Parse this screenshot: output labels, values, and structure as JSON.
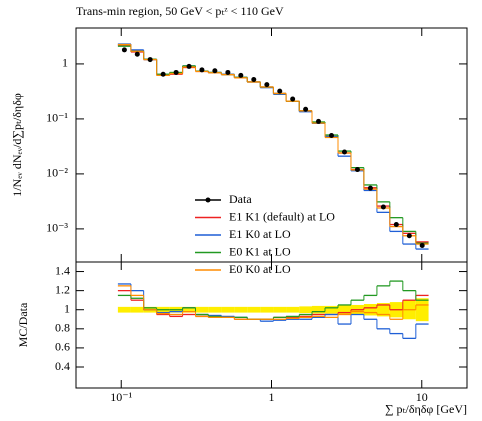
{
  "chart_data": {
    "type": "histogram",
    "title": "Trans-min region, 50 GeV < pₜᶻ < 110 GeV",
    "ylabel": "1/Nₑᵥ dNₑᵥ/d∑pₜ/δηδφ",
    "xlabel": "∑ pₜ/δηδφ [GeV]",
    "ratio_ylabel": "MC/Data",
    "log_x": true,
    "log_y": true,
    "xlim": [
      0.05,
      20
    ],
    "xticks": [
      {
        "value": 0.1,
        "label": "10⁻¹"
      },
      1,
      10
    ],
    "ylim": [
      0.00025,
      4.5
    ],
    "yticks": [
      {
        "value": 0.001,
        "label": "10⁻³"
      },
      {
        "value": 0.01,
        "label": "10⁻²"
      },
      {
        "value": 0.1,
        "label": "10⁻¹"
      },
      1
    ],
    "ratio_ylim": [
      0.18,
      1.5
    ],
    "ratio_yticks": [
      0.4,
      0.6,
      0.8,
      1,
      1.2,
      1.4
    ],
    "bins": [
      0.095,
      0.116,
      0.141,
      0.172,
      0.21,
      0.256,
      0.312,
      0.38,
      0.464,
      0.566,
      0.69,
      0.842,
      1.03,
      1.25,
      1.53,
      1.86,
      2.27,
      2.77,
      3.38,
      4.12,
      5.03,
      6.13,
      7.48,
      9.13,
      11.1
    ],
    "ratio_band": [
      0.03,
      0.03,
      0.03,
      0.03,
      0.03,
      0.03,
      0.03,
      0.03,
      0.03,
      0.03,
      0.03,
      0.03,
      0.03,
      0.03,
      0.035,
      0.04,
      0.04,
      0.05,
      0.05,
      0.06,
      0.07,
      0.08,
      0.1,
      0.12
    ],
    "ratio_band_color": "#ffee00",
    "legend": "bottom-left",
    "series": [
      {
        "name": "Data",
        "color": "#000000",
        "values": [
          1.8,
          1.5,
          1.2,
          0.65,
          0.7,
          0.9,
          0.78,
          0.75,
          0.7,
          0.62,
          0.52,
          0.42,
          0.32,
          0.23,
          0.15,
          0.09,
          0.05,
          0.025,
          0.012,
          0.0055,
          0.0025,
          0.0012,
          0.00075,
          0.0005
        ]
      },
      {
        "name": "E1 K1 (default) at LO",
        "color": "#ee2222",
        "values": [
          2.2,
          1.65,
          1.2,
          0.62,
          0.65,
          0.86,
          0.73,
          0.69,
          0.64,
          0.56,
          0.47,
          0.38,
          0.29,
          0.21,
          0.14,
          0.086,
          0.048,
          0.024,
          0.012,
          0.0056,
          0.0026,
          0.0012,
          0.00083,
          0.00058
        ],
        "ratio": [
          1.2,
          1.1,
          1.0,
          0.95,
          0.93,
          0.95,
          0.93,
          0.92,
          0.92,
          0.9,
          0.9,
          0.9,
          0.92,
          0.92,
          0.93,
          0.95,
          0.95,
          0.97,
          1.0,
          1.02,
          1.05,
          1.0,
          1.1,
          1.15
        ]
      },
      {
        "name": "E1 K0 at LO",
        "color": "#1f5fd6",
        "values": [
          2.3,
          1.8,
          1.2,
          0.63,
          0.69,
          0.92,
          0.74,
          0.7,
          0.65,
          0.57,
          0.47,
          0.37,
          0.28,
          0.21,
          0.135,
          0.083,
          0.048,
          0.021,
          0.0114,
          0.005,
          0.002,
          0.0009,
          0.00053,
          0.00043
        ],
        "ratio": [
          1.27,
          1.2,
          1.0,
          0.97,
          0.98,
          1.02,
          0.95,
          0.94,
          0.93,
          0.92,
          0.9,
          0.88,
          0.89,
          0.9,
          0.9,
          0.92,
          0.95,
          0.85,
          0.95,
          0.9,
          0.8,
          0.75,
          0.7,
          0.85
        ]
      },
      {
        "name": "E0 K1 at LO",
        "color": "#229922",
        "values": [
          2.1,
          1.7,
          1.22,
          0.65,
          0.7,
          0.92,
          0.74,
          0.7,
          0.64,
          0.57,
          0.47,
          0.38,
          0.29,
          0.21,
          0.14,
          0.088,
          0.051,
          0.026,
          0.013,
          0.0063,
          0.0031,
          0.0016,
          0.0009,
          0.00055
        ],
        "ratio": [
          1.15,
          1.12,
          1.02,
          1.0,
          1.0,
          1.02,
          0.95,
          0.93,
          0.92,
          0.92,
          0.9,
          0.9,
          0.92,
          0.93,
          0.95,
          0.98,
          1.02,
          1.05,
          1.1,
          1.15,
          1.25,
          1.3,
          1.2,
          1.1
        ]
      },
      {
        "name": "E0 K0 at LO",
        "color": "#ff8c00",
        "values": [
          2.25,
          1.7,
          1.2,
          0.62,
          0.67,
          0.88,
          0.73,
          0.69,
          0.64,
          0.56,
          0.47,
          0.38,
          0.29,
          0.21,
          0.14,
          0.084,
          0.046,
          0.024,
          0.0118,
          0.0053,
          0.0024,
          0.0011,
          0.00075,
          0.00053
        ],
        "ratio": [
          1.25,
          1.15,
          1.0,
          0.96,
          0.95,
          0.98,
          0.93,
          0.92,
          0.92,
          0.9,
          0.9,
          0.9,
          0.9,
          0.91,
          0.92,
          0.93,
          0.92,
          0.95,
          0.98,
          0.97,
          0.95,
          0.9,
          1.0,
          1.05
        ]
      }
    ]
  }
}
